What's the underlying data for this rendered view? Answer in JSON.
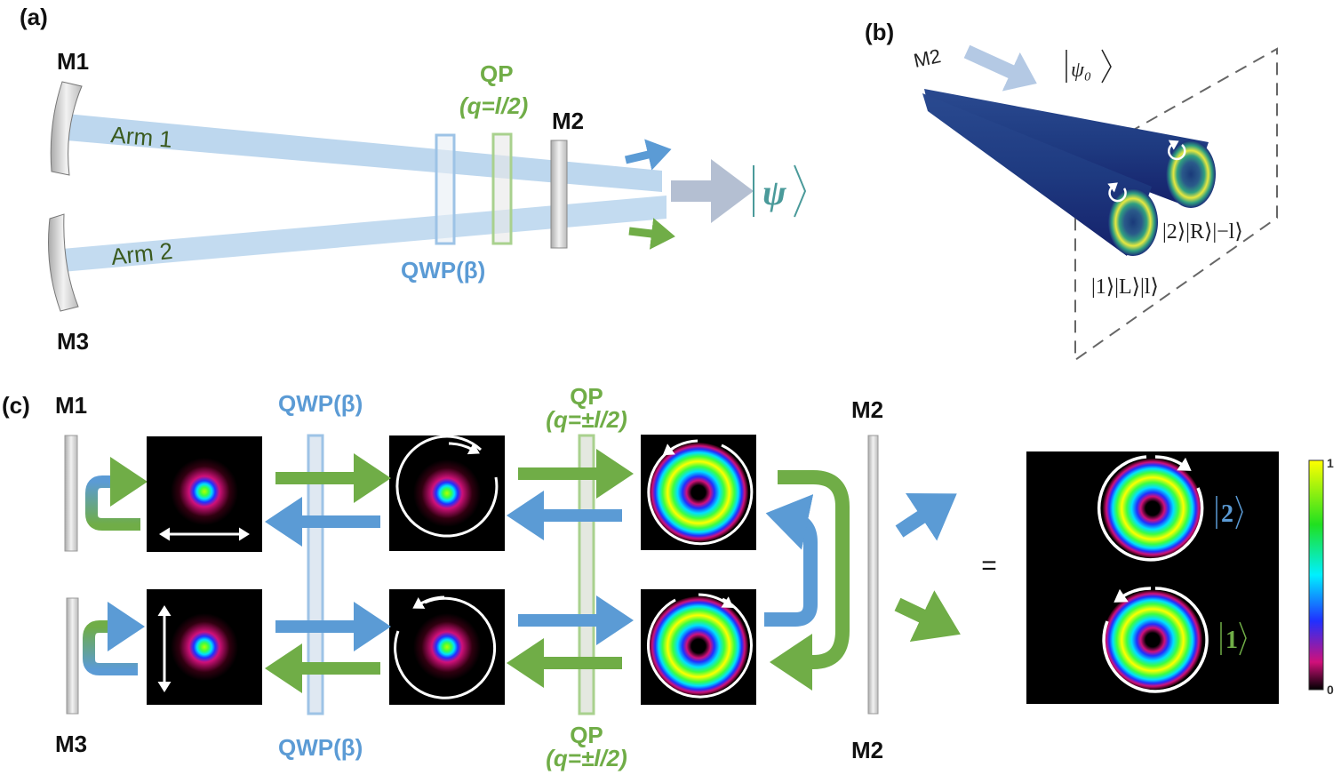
{
  "panel_a": {
    "label": "(a)",
    "mirror_top": "M1",
    "mirror_bottom": "M3",
    "mirror_out": "M2",
    "arm1": "Arm 1",
    "arm2": "Arm 2",
    "qp": "QP",
    "qp_charge": "(q=l/2)",
    "qwp": "QWP(β)",
    "output_state": "ψ"
  },
  "panel_b": {
    "label": "(b)",
    "mirror": "M2",
    "input_state": "ψ₀",
    "state_2": "|2⟩|R⟩|−l⟩",
    "state_1": "|1⟩|L⟩|l⟩"
  },
  "panel_c": {
    "label": "(c)",
    "mirror_top": "M1",
    "mirror_bottom": "M3",
    "m2_top": "M2",
    "m2_bottom": "M2",
    "qwp_top": "QWP(β)",
    "qwp_bottom": "QWP(β)",
    "qp_top": "QP",
    "qp_top_charge": "(q=±l/2)",
    "qp_bottom": "QP",
    "qp_bottom_charge": "(q=±l/2)",
    "equals": "=",
    "ket_2": "2",
    "ket_1": "1",
    "colorbar_max": "1",
    "colorbar_min": "0"
  },
  "colors": {
    "blue": "#5b9bd5",
    "green": "#70ad47",
    "beam": "#bdd7ee",
    "teal": "#4a9a9a"
  }
}
